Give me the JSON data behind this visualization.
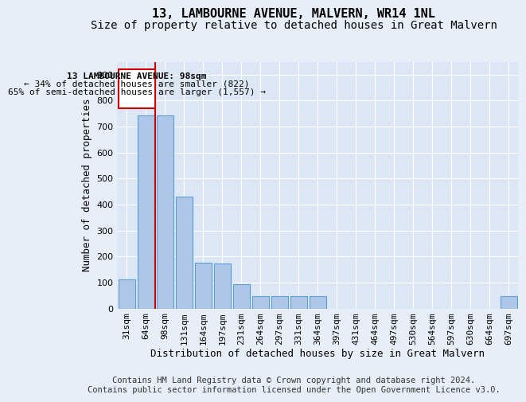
{
  "title": "13, LAMBOURNE AVENUE, MALVERN, WR14 1NL",
  "subtitle": "Size of property relative to detached houses in Great Malvern",
  "xlabel": "Distribution of detached houses by size in Great Malvern",
  "ylabel": "Number of detached properties",
  "footer_line1": "Contains HM Land Registry data © Crown copyright and database right 2024.",
  "footer_line2": "Contains public sector information licensed under the Open Government Licence v3.0.",
  "categories": [
    "31sqm",
    "64sqm",
    "98sqm",
    "131sqm",
    "164sqm",
    "197sqm",
    "231sqm",
    "264sqm",
    "297sqm",
    "331sqm",
    "364sqm",
    "397sqm",
    "431sqm",
    "464sqm",
    "497sqm",
    "530sqm",
    "564sqm",
    "597sqm",
    "630sqm",
    "664sqm",
    "697sqm"
  ],
  "values": [
    112,
    742,
    742,
    432,
    175,
    173,
    92,
    47,
    47,
    47,
    47,
    0,
    0,
    0,
    0,
    0,
    0,
    0,
    0,
    0,
    47
  ],
  "bar_color": "#aec6e8",
  "bar_edge_color": "#5a9fd4",
  "red_line_x": 1.5,
  "annotation_text_line1": "13 LAMBOURNE AVENUE: 98sqm",
  "annotation_text_line2": "← 34% of detached houses are smaller (822)",
  "annotation_text_line3": "65% of semi-detached houses are larger (1,557) →",
  "annotation_box_color": "#cc0000",
  "ylim": [
    0,
    950
  ],
  "yticks": [
    0,
    100,
    200,
    300,
    400,
    500,
    600,
    700,
    800,
    900
  ],
  "background_color": "#e8eef7",
  "plot_background_color": "#dce6f5",
  "grid_color": "#ffffff",
  "title_fontsize": 11,
  "subtitle_fontsize": 10,
  "axis_label_fontsize": 9,
  "tick_fontsize": 8,
  "annotation_fontsize": 8,
  "footer_fontsize": 7.5
}
